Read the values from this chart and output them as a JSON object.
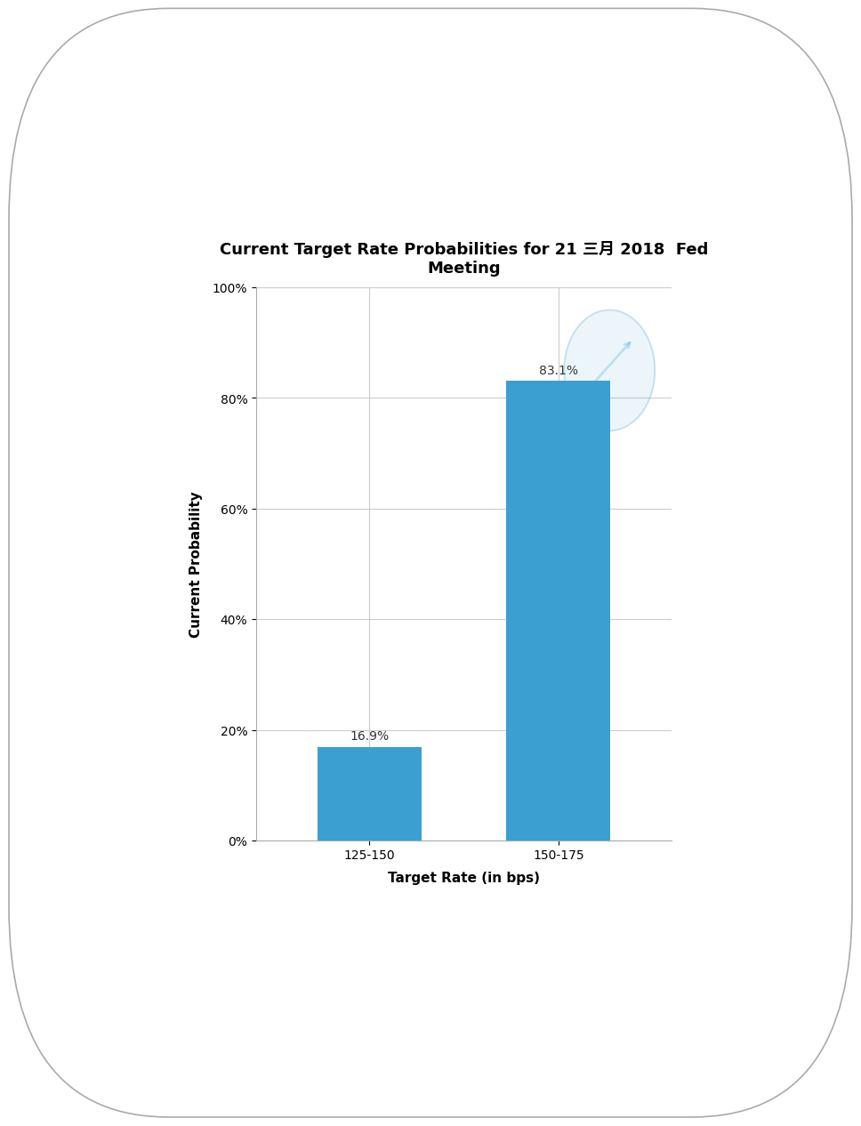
{
  "title": "Current Target Rate Probabilities for 21 三月 2018  Fed\nMeeting",
  "categories": [
    "125-150",
    "150-175"
  ],
  "values": [
    16.9,
    83.1
  ],
  "bar_color": "#3B9FD1",
  "xlabel": "Target Rate (in bps)",
  "ylabel": "Current Probability",
  "ylim": [
    0,
    100
  ],
  "yticks": [
    0,
    20,
    40,
    60,
    80,
    100
  ],
  "ytick_labels": [
    "0%",
    "20%",
    "40%",
    "60%",
    "80%",
    "100%"
  ],
  "bar_labels": [
    "16.9%",
    "83.1%"
  ],
  "title_fontsize": 13,
  "label_fontsize": 11,
  "tick_fontsize": 10,
  "bg_color": "#FFFFFF",
  "plot_bg_color": "#FFFFFF",
  "grid_color": "#CCCCCC",
  "frame_color": "#CCCCCC"
}
